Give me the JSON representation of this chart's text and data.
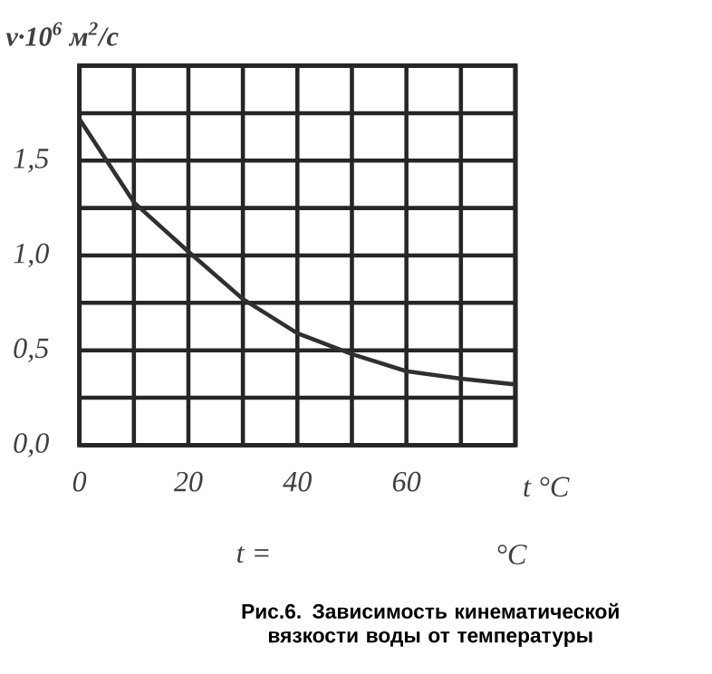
{
  "chart_data": {
    "type": "line",
    "title": "Рис.6. Зависимость кинематической вязкости воды от температуры",
    "ylabel": "ν·10$^{6}$ м$^{2}$/с",
    "xlabel": "t °C",
    "annotations": [
      "t =",
      "°C"
    ],
    "series": [
      {
        "color": "#303030",
        "x": [
          0,
          10,
          20,
          30,
          40,
          50,
          60,
          70,
          80
        ],
        "values": [
          1.72,
          1.28,
          1.02,
          0.77,
          0.59,
          0.48,
          0.39,
          0.35,
          0.32
        ]
      }
    ],
    "xlim": [
      0,
      80
    ],
    "xticks": [
      0,
      {
        "value": 10,
        "label": null
      },
      20,
      {
        "value": 30,
        "label": null
      },
      40,
      {
        "value": 50,
        "label": null
      },
      60,
      {
        "value": 70,
        "label": null
      },
      {
        "value": 80,
        "label": null
      }
    ],
    "ylim": [
      0,
      2
    ],
    "yticks": [
      {
        "value": 0,
        "label": "0,0"
      },
      {
        "value": 0.25,
        "label": null
      },
      {
        "value": 0.5,
        "label": "0,5"
      },
      {
        "value": 0.75,
        "label": null
      },
      {
        "value": 1,
        "label": "1,0"
      },
      {
        "value": 1.25,
        "label": null
      },
      {
        "value": 1.5,
        "label": "1,5"
      },
      {
        "value": 1.75,
        "label": null
      },
      {
        "value": 2,
        "label": null
      }
    ],
    "grid": true,
    "marker": "none",
    "line_style": "solid"
  }
}
